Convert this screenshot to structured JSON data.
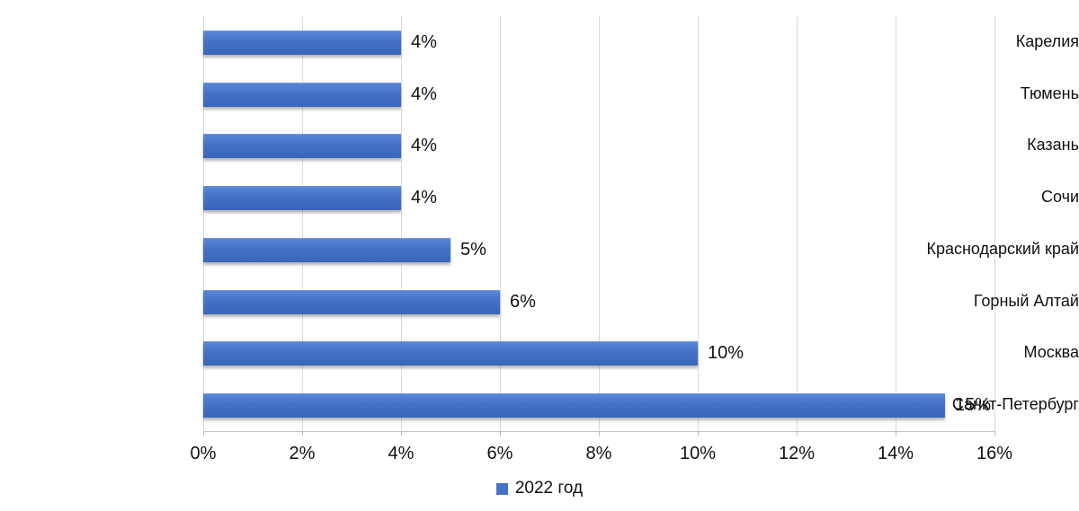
{
  "chart_data": {
    "type": "bar",
    "orientation": "horizontal",
    "title": "",
    "categories": [
      "Карелия",
      "Тюмень",
      "Казань",
      "Сочи",
      "Краснодарский край",
      "Горный Алтай",
      "Москва",
      "Санкт-Петербург"
    ],
    "series": [
      {
        "name": "2022 год",
        "values": [
          4,
          4,
          4,
          4,
          5,
          6,
          10,
          15
        ],
        "value_labels": [
          "4%",
          "4%",
          "4%",
          "4%",
          "5%",
          "6%",
          "10%",
          "15%"
        ],
        "color": "#4472c4"
      }
    ],
    "xlabel": "",
    "ylabel": "",
    "xlim": [
      0,
      16
    ],
    "x_tick_labels": [
      "0%",
      "2%",
      "4%",
      "6%",
      "8%",
      "10%",
      "12%",
      "14%",
      "16%"
    ],
    "x_tick_values": [
      0,
      2,
      4,
      6,
      8,
      10,
      12,
      14,
      16
    ],
    "grid": true,
    "legend_position": "bottom"
  },
  "legend": {
    "label": "2022 год",
    "swatch_color": "#4472c4"
  },
  "colors": {
    "bar": "#4472c4",
    "gridline": "#d9d9d9",
    "axis_line": "#c6c6c6",
    "text": "#111111"
  }
}
